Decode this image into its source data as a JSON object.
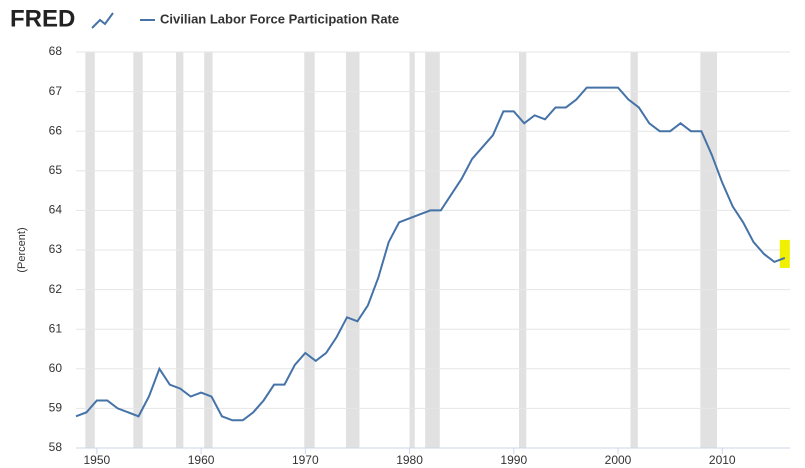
{
  "logo": "FRED",
  "chart_data": {
    "type": "line",
    "y_label": "(Percent)",
    "series": [
      {
        "name": "Civilian Labor Force Participation Rate",
        "color": "#4572a7",
        "x": [
          1948,
          1949,
          1950,
          1951,
          1952,
          1953,
          1954,
          1955,
          1956,
          1957,
          1958,
          1959,
          1960,
          1961,
          1962,
          1963,
          1964,
          1965,
          1966,
          1967,
          1968,
          1969,
          1970,
          1971,
          1972,
          1973,
          1974,
          1975,
          1976,
          1977,
          1978,
          1979,
          1980,
          1981,
          1982,
          1983,
          1984,
          1985,
          1986,
          1987,
          1988,
          1989,
          1990,
          1991,
          1992,
          1993,
          1994,
          1995,
          1996,
          1997,
          1998,
          1999,
          2000,
          2001,
          2002,
          2003,
          2004,
          2005,
          2006,
          2007,
          2008,
          2009,
          2010,
          2011,
          2012,
          2013,
          2014,
          2015,
          2016
        ],
        "values": [
          58.8,
          58.9,
          59.2,
          59.2,
          59.0,
          58.9,
          58.8,
          59.3,
          60.0,
          59.6,
          59.5,
          59.3,
          59.4,
          59.3,
          58.8,
          58.7,
          58.7,
          58.9,
          59.2,
          59.6,
          59.6,
          60.1,
          60.4,
          60.2,
          60.4,
          60.8,
          61.3,
          61.2,
          61.6,
          62.3,
          63.2,
          63.7,
          63.8,
          63.9,
          64.0,
          64.0,
          64.4,
          64.8,
          65.3,
          65.6,
          65.9,
          66.5,
          66.5,
          66.2,
          66.4,
          66.3,
          66.6,
          66.6,
          66.8,
          67.1,
          67.1,
          67.1,
          67.1,
          66.8,
          66.6,
          66.2,
          66.0,
          66.0,
          66.2,
          66.0,
          66.0,
          65.4,
          64.7,
          64.1,
          63.7,
          63.2,
          62.9,
          62.7,
          62.8
        ]
      }
    ],
    "recessions": [
      [
        1948.9,
        1949.8
      ],
      [
        1953.5,
        1954.4
      ],
      [
        1957.6,
        1958.3
      ],
      [
        1960.3,
        1961.1
      ],
      [
        1969.9,
        1970.9
      ],
      [
        1973.9,
        1975.2
      ],
      [
        1980.0,
        1980.5
      ],
      [
        1981.5,
        1982.9
      ],
      [
        1990.5,
        1991.2
      ],
      [
        2001.2,
        2001.9
      ],
      [
        2007.9,
        2009.5
      ]
    ],
    "recession_color": "#e1e1e1",
    "highlight_color": "#f0f000",
    "xlim": [
      1948,
      2016.5
    ],
    "xticks": [
      1950,
      1960,
      1970,
      1980,
      1990,
      2000,
      2010
    ],
    "ylim": [
      58,
      68
    ],
    "yticks": [
      58,
      59,
      60,
      61,
      62,
      63,
      64,
      65,
      66,
      67,
      68
    ],
    "grid": true
  }
}
